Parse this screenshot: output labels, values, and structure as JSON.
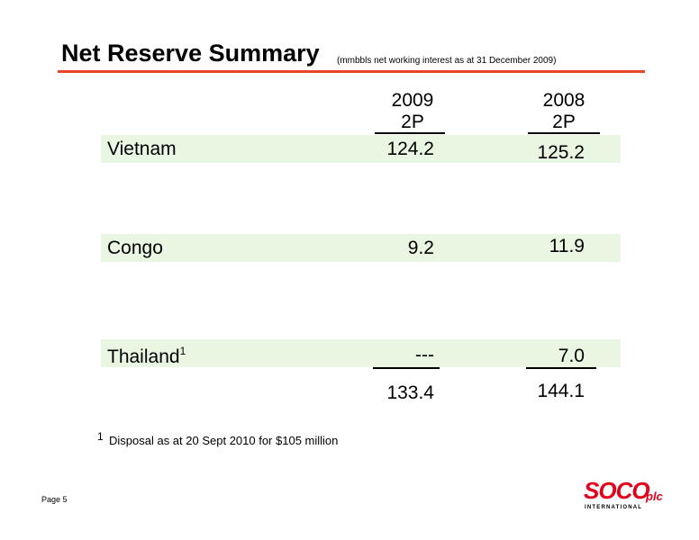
{
  "header": {
    "title": "Net Reserve Summary",
    "subtitle": "(mmbbls net working interest as at 31 December 2009)"
  },
  "columns": [
    {
      "year": "2009",
      "type": "2P"
    },
    {
      "year": "2008",
      "type": "2P"
    }
  ],
  "rows": [
    {
      "label": "Vietnam",
      "sup": "",
      "v2009": "124.2",
      "v2008": "125.2"
    },
    {
      "label": "Congo",
      "sup": "",
      "v2009": "9.2",
      "v2008": "11.9"
    },
    {
      "label": "Thailand",
      "sup": "1",
      "v2009": "---",
      "v2008": "7.0"
    }
  ],
  "totals": {
    "v2009": "133.4",
    "v2008": "144.1"
  },
  "footnote": {
    "mark": "1",
    "text": "Disposal as at 20 Sept 2010 for $105 million"
  },
  "footer": {
    "page": "Page 5"
  },
  "logo": {
    "brand": "SOCO",
    "suffix": "plc",
    "tagline": "INTERNATIONAL",
    "color": "#e3001b"
  },
  "colors": {
    "accent_rule": "#e8452c",
    "row_band": "#e9f6e1"
  }
}
